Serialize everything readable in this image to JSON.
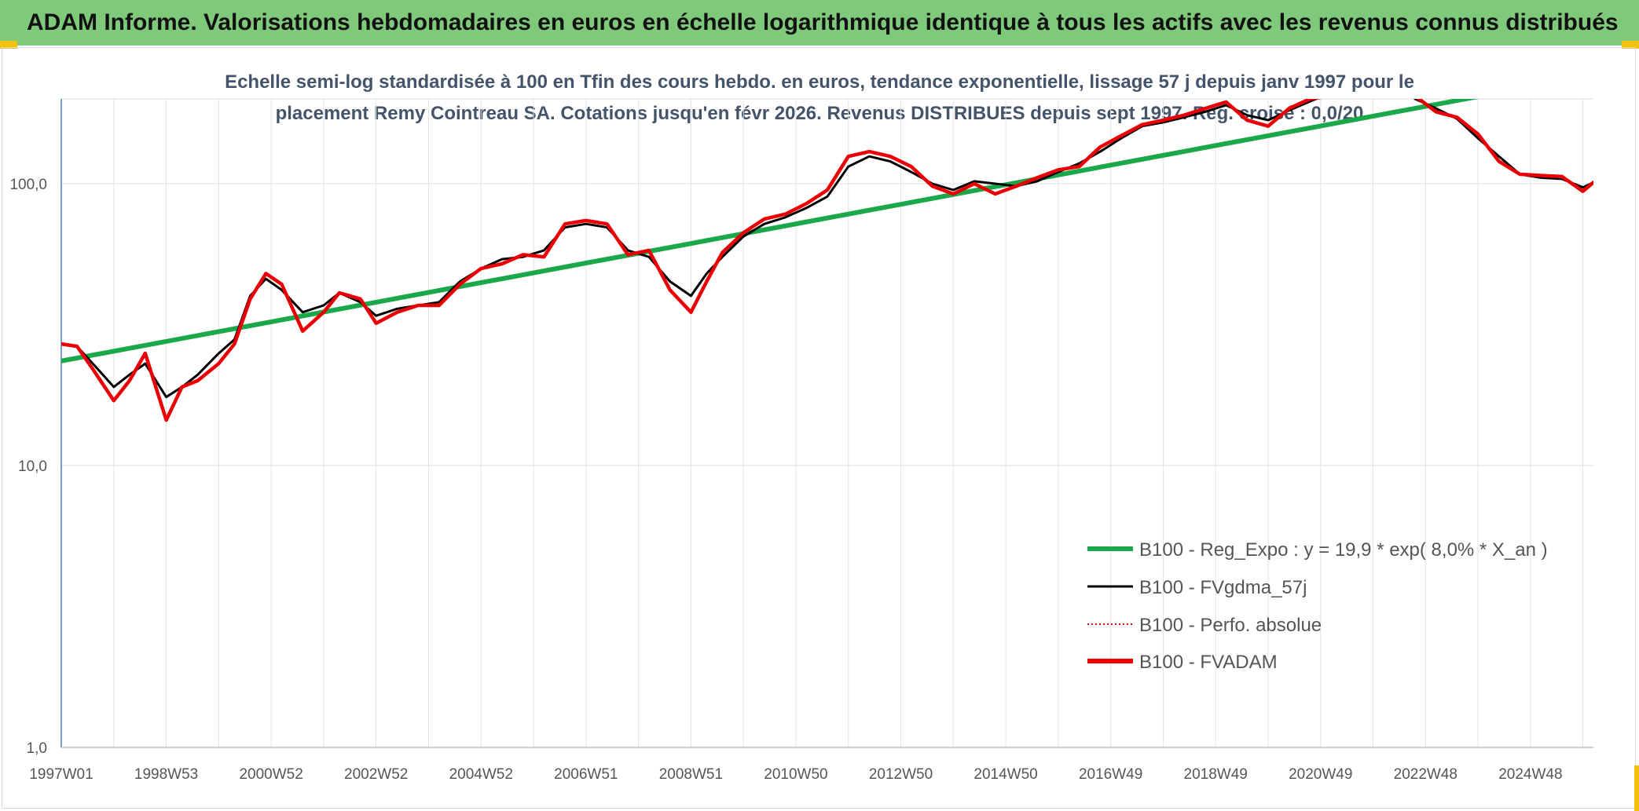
{
  "banner": {
    "title": "ADAM Informe. Valorisations hebdomadaires en euros en échelle logarithmique identique à tous les actifs avec les revenus connus distribués"
  },
  "colors": {
    "banner_bg": "#7fc97a",
    "trend": "#1aa84a",
    "smooth": "#000000",
    "perfo": "#e0000f",
    "fvadam": "#f00000",
    "accent": "#f4c20d"
  },
  "chart_data": {
    "type": "line",
    "title_lines": [
      "Echelle semi-log standardisée à 100 en Tfin des cours hebdo. en euros, tendance exponentielle, lissage 57 j depuis janv 1997 pour le",
      "placement Remy Cointreau SA. Cotations jusqu'en févr 2026. Revenus DISTRIBUES depuis sept 1997. Reg. croisé : 0,0/20"
    ],
    "y_scale": "log",
    "ylim": [
      1,
      200
    ],
    "y_ticks": [
      {
        "value": 1,
        "label": "1,0"
      },
      {
        "value": 10,
        "label": "10,0"
      },
      {
        "value": 100,
        "label": "100,0"
      }
    ],
    "xlim": [
      1997.0,
      2026.2
    ],
    "x_ticks": [
      {
        "value": 1997.0,
        "label": "1997W01"
      },
      {
        "value": 1999.0,
        "label": "1998W53"
      },
      {
        "value": 2001.0,
        "label": "2000W52"
      },
      {
        "value": 2003.0,
        "label": "2002W52"
      },
      {
        "value": 2005.0,
        "label": "2004W52"
      },
      {
        "value": 2007.0,
        "label": "2006W51"
      },
      {
        "value": 2009.0,
        "label": "2008W51"
      },
      {
        "value": 2011.0,
        "label": "2010W50"
      },
      {
        "value": 2013.0,
        "label": "2012W50"
      },
      {
        "value": 2015.0,
        "label": "2014W50"
      },
      {
        "value": 2017.0,
        "label": "2016W49"
      },
      {
        "value": 2019.0,
        "label": "2018W49"
      },
      {
        "value": 2021.0,
        "label": "2020W49"
      },
      {
        "value": 2023.0,
        "label": "2022W48"
      },
      {
        "value": 2025.0,
        "label": "2024W48"
      }
    ],
    "grid": true,
    "legend_position": "bottom-right",
    "series": [
      {
        "name": "B100 - Reg_Expo : y = 19,9 * exp( 8,0% *  X_an )",
        "style": "trend",
        "x": [
          1997.0,
          2026.2
        ],
        "y": [
          23.5,
          243.0
        ]
      },
      {
        "name": "B100 - FVgdma_57j",
        "style": "smooth",
        "x": [
          1997.0,
          1997.3,
          1997.6,
          1998.0,
          1998.3,
          1998.6,
          1999.0,
          1999.3,
          1999.6,
          2000.0,
          2000.3,
          2000.6,
          2000.9,
          2001.2,
          2001.6,
          2002.0,
          2002.3,
          2002.7,
          2003.0,
          2003.4,
          2003.8,
          2004.2,
          2004.6,
          2005.0,
          2005.4,
          2005.8,
          2006.2,
          2006.6,
          2007.0,
          2007.4,
          2007.8,
          2008.2,
          2008.6,
          2009.0,
          2009.3,
          2009.6,
          2010.0,
          2010.4,
          2010.8,
          2011.2,
          2011.6,
          2012.0,
          2012.4,
          2012.8,
          2013.2,
          2013.6,
          2014.0,
          2014.4,
          2014.8,
          2015.2,
          2015.6,
          2016.0,
          2016.4,
          2016.8,
          2017.2,
          2017.6,
          2018.0,
          2018.4,
          2018.8,
          2019.2,
          2019.6,
          2020.0,
          2020.4,
          2020.8,
          2021.2,
          2021.6,
          2022.0,
          2022.4,
          2022.8,
          2023.2,
          2023.6,
          2024.0,
          2024.4,
          2024.8,
          2025.2,
          2025.6,
          2026.0,
          2026.2
        ],
        "y": [
          27,
          26.5,
          23,
          19,
          21,
          23,
          17.5,
          19,
          21,
          25,
          28,
          40,
          46,
          42,
          35,
          37,
          41,
          38,
          34,
          36,
          37,
          38,
          45,
          50,
          54,
          55,
          58,
          70,
          72,
          70,
          58,
          55,
          45,
          40,
          48,
          55,
          65,
          72,
          76,
          82,
          90,
          115,
          125,
          120,
          110,
          100,
          95,
          102,
          100,
          98,
          102,
          110,
          118,
          130,
          145,
          160,
          165,
          172,
          180,
          190,
          175,
          168,
          182,
          196,
          210,
          230,
          250,
          240,
          200,
          185,
          170,
          145,
          125,
          108,
          105,
          104,
          97,
          101
        ]
      },
      {
        "name": "B100 - Perfo. absolue",
        "style": "dotted",
        "x": [
          1997.0,
          1997.3,
          1997.6,
          1998.0,
          1998.3,
          1998.6,
          1999.0,
          1999.3,
          1999.6,
          2000.0,
          2000.3,
          2000.6,
          2000.9,
          2001.2,
          2001.6,
          2002.0,
          2002.3,
          2002.7,
          2003.0,
          2003.4,
          2003.8,
          2004.2,
          2004.6,
          2005.0,
          2005.4,
          2005.8,
          2006.2,
          2006.6,
          2007.0,
          2007.4,
          2007.8,
          2008.2,
          2008.6,
          2009.0,
          2009.3,
          2009.6,
          2010.0,
          2010.4,
          2010.8,
          2011.2,
          2011.6,
          2012.0,
          2012.4,
          2012.8,
          2013.2,
          2013.6,
          2014.0,
          2014.4,
          2014.8,
          2015.2,
          2015.6,
          2016.0,
          2016.4,
          2016.8,
          2017.2,
          2017.6,
          2018.0,
          2018.4,
          2018.8,
          2019.2,
          2019.6,
          2020.0,
          2020.4,
          2020.8,
          2021.2,
          2021.6,
          2022.0,
          2022.4,
          2022.8,
          2023.2,
          2023.6,
          2024.0,
          2024.4,
          2024.8,
          2025.2,
          2025.6,
          2026.0,
          2026.2
        ],
        "y": [
          27,
          26.5,
          22,
          17,
          20,
          25,
          14.5,
          19,
          20,
          23,
          27,
          39,
          48,
          44,
          30,
          35,
          41,
          39,
          32,
          35,
          37,
          37,
          44,
          50,
          52,
          56,
          55,
          72,
          74,
          72,
          56,
          58,
          42,
          35,
          45,
          57,
          67,
          75,
          78,
          85,
          95,
          125,
          130,
          125,
          115,
          98,
          92,
          100,
          92,
          98,
          105,
          112,
          115,
          135,
          148,
          162,
          168,
          175,
          185,
          195,
          168,
          160,
          185,
          200,
          205,
          240,
          255,
          245,
          205,
          180,
          172,
          150,
          120,
          108,
          107,
          106,
          94,
          101
        ]
      },
      {
        "name": "B100 - FVADAM",
        "style": "fvadam",
        "x": [
          1997.0,
          1997.3,
          1997.6,
          1998.0,
          1998.3,
          1998.6,
          1999.0,
          1999.3,
          1999.6,
          2000.0,
          2000.3,
          2000.6,
          2000.9,
          2001.2,
          2001.6,
          2002.0,
          2002.3,
          2002.7,
          2003.0,
          2003.4,
          2003.8,
          2004.2,
          2004.6,
          2005.0,
          2005.4,
          2005.8,
          2006.2,
          2006.6,
          2007.0,
          2007.4,
          2007.8,
          2008.2,
          2008.6,
          2009.0,
          2009.3,
          2009.6,
          2010.0,
          2010.4,
          2010.8,
          2011.2,
          2011.6,
          2012.0,
          2012.4,
          2012.8,
          2013.2,
          2013.6,
          2014.0,
          2014.4,
          2014.8,
          2015.2,
          2015.6,
          2016.0,
          2016.4,
          2016.8,
          2017.2,
          2017.6,
          2018.0,
          2018.4,
          2018.8,
          2019.2,
          2019.6,
          2020.0,
          2020.4,
          2020.8,
          2021.2,
          2021.6,
          2022.0,
          2022.4,
          2022.8,
          2023.2,
          2023.6,
          2024.0,
          2024.4,
          2024.8,
          2025.2,
          2025.6,
          2026.0,
          2026.2
        ],
        "y": [
          27,
          26.5,
          22,
          17,
          20,
          25,
          14.5,
          19,
          20,
          23,
          27,
          39,
          48,
          44,
          30,
          35,
          41,
          39,
          32,
          35,
          37,
          37,
          44,
          50,
          52,
          56,
          55,
          72,
          74,
          72,
          56,
          58,
          42,
          35,
          45,
          57,
          67,
          75,
          78,
          85,
          95,
          125,
          130,
          125,
          115,
          98,
          92,
          100,
          92,
          98,
          105,
          112,
          115,
          135,
          148,
          162,
          168,
          175,
          185,
          195,
          168,
          160,
          185,
          200,
          205,
          240,
          255,
          245,
          205,
          180,
          172,
          150,
          120,
          108,
          107,
          106,
          94,
          101
        ]
      }
    ]
  }
}
